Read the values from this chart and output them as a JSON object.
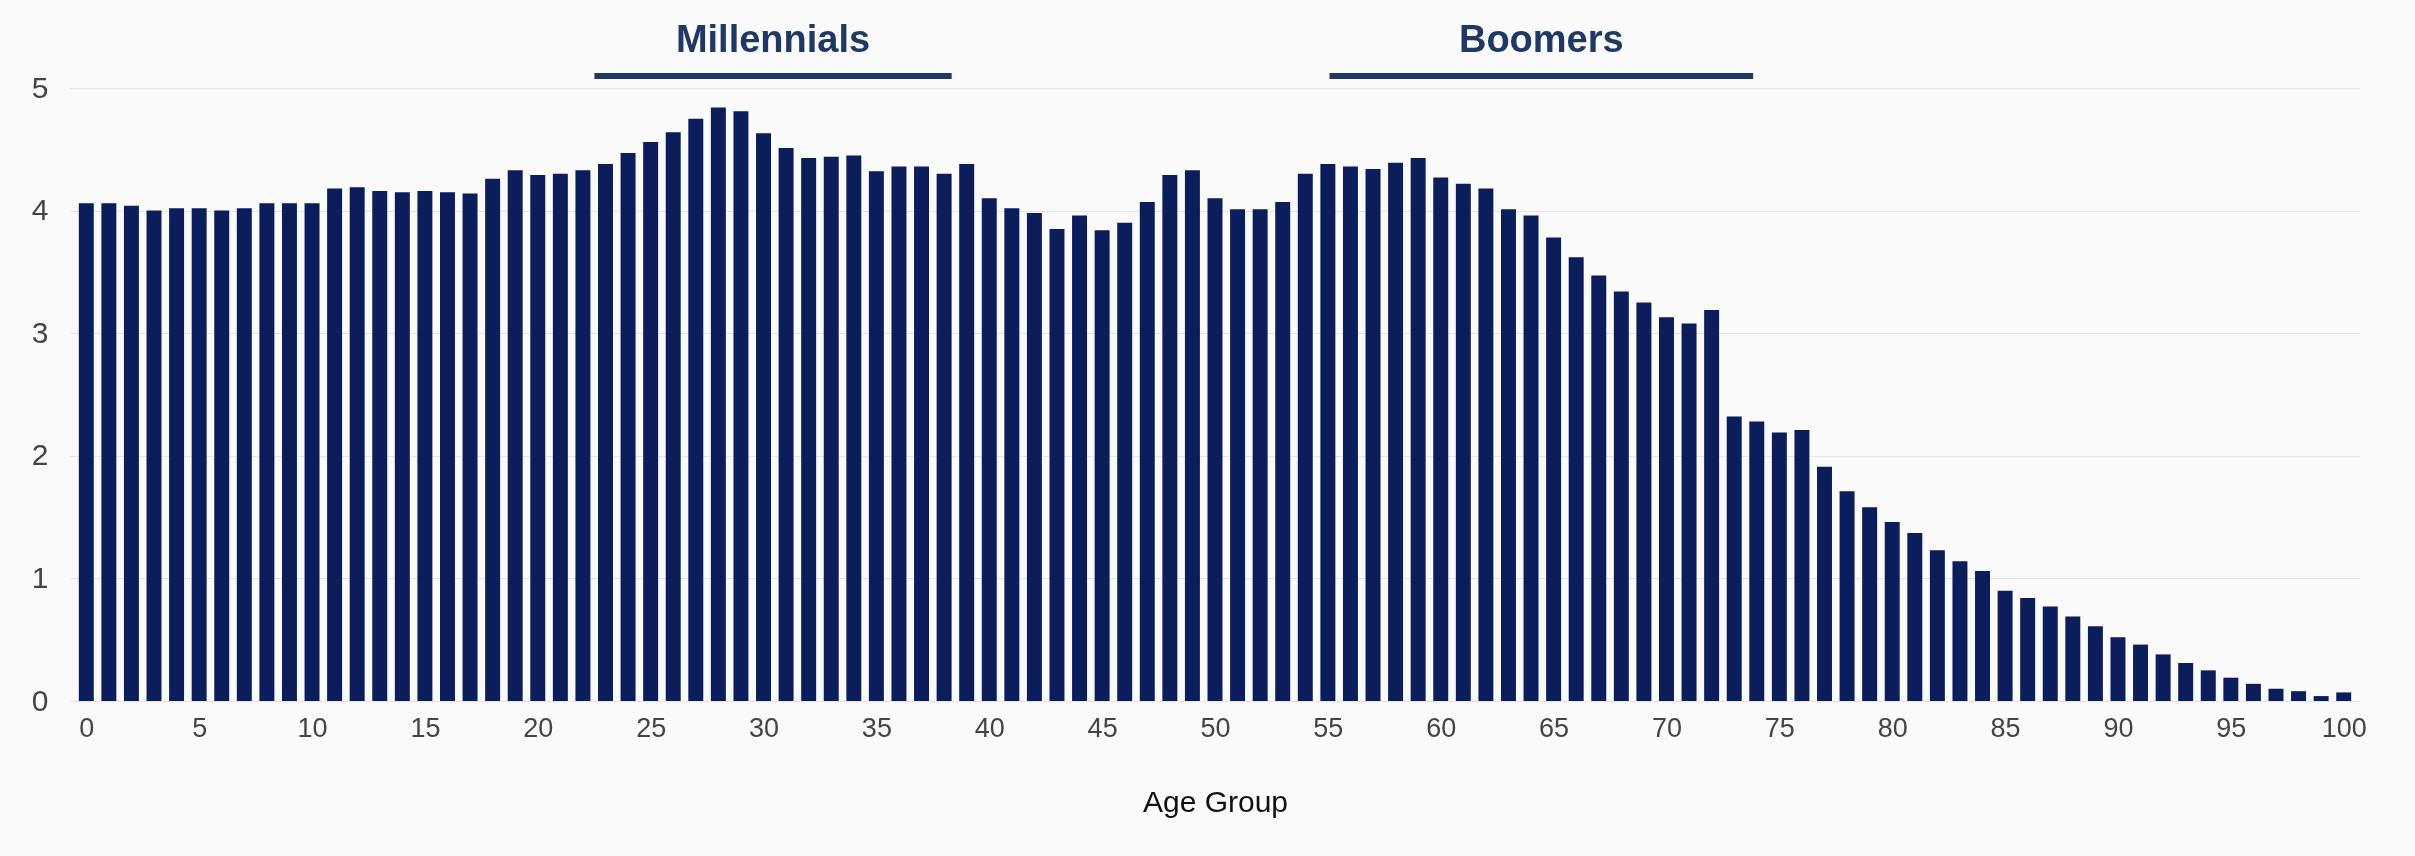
{
  "chart_data": {
    "type": "bar",
    "xlabel": "Age Group",
    "x": [
      0,
      1,
      2,
      3,
      4,
      5,
      6,
      7,
      8,
      9,
      10,
      11,
      12,
      13,
      14,
      15,
      16,
      17,
      18,
      19,
      20,
      21,
      22,
      23,
      24,
      25,
      26,
      27,
      28,
      29,
      30,
      31,
      32,
      33,
      34,
      35,
      36,
      37,
      38,
      39,
      40,
      41,
      42,
      43,
      44,
      45,
      46,
      47,
      48,
      49,
      50,
      51,
      52,
      53,
      54,
      55,
      56,
      57,
      58,
      59,
      60,
      61,
      62,
      63,
      64,
      65,
      66,
      67,
      68,
      69,
      70,
      71,
      72,
      73,
      74,
      75,
      76,
      77,
      78,
      79,
      80,
      81,
      82,
      83,
      84,
      85,
      86,
      87,
      88,
      89,
      90,
      91,
      92,
      93,
      94,
      95,
      96,
      97,
      98,
      99,
      100
    ],
    "values": [
      4.06,
      4.06,
      4.04,
      4.0,
      4.02,
      4.02,
      4.0,
      4.02,
      4.06,
      4.06,
      4.06,
      4.18,
      4.19,
      4.16,
      4.15,
      4.16,
      4.15,
      4.14,
      4.26,
      4.33,
      4.29,
      4.3,
      4.33,
      4.38,
      4.47,
      4.56,
      4.64,
      4.75,
      4.84,
      4.81,
      4.63,
      4.51,
      4.43,
      4.44,
      4.45,
      4.32,
      4.36,
      4.36,
      4.3,
      4.38,
      4.1,
      4.02,
      3.98,
      3.85,
      3.96,
      3.84,
      3.9,
      4.07,
      4.29,
      4.33,
      4.1,
      4.01,
      4.01,
      4.07,
      4.3,
      4.38,
      4.36,
      4.34,
      4.39,
      4.43,
      4.27,
      4.22,
      4.18,
      4.01,
      3.96,
      3.78,
      3.62,
      3.47,
      3.34,
      3.25,
      3.13,
      3.08,
      3.19,
      2.32,
      2.28,
      2.19,
      2.21,
      1.91,
      1.71,
      1.58,
      1.46,
      1.37,
      1.23,
      1.14,
      1.06,
      0.9,
      0.84,
      0.77,
      0.69,
      0.61,
      0.52,
      0.46,
      0.38,
      0.31,
      0.25,
      0.19,
      0.14,
      0.1,
      0.08,
      0.04,
      0.07
    ],
    "color": "#0b1d5a",
    "xlim": [
      -0.5,
      100.5
    ],
    "xticks": [
      0,
      5,
      10,
      15,
      20,
      25,
      30,
      35,
      40,
      45,
      50,
      55,
      60,
      65,
      70,
      75,
      80,
      85,
      90,
      95,
      100
    ],
    "ylim": [
      0,
      5
    ],
    "yticks": [
      0,
      1,
      2,
      3,
      4,
      5
    ],
    "grid": "y",
    "annotations": [
      "Millennials",
      "Boomers"
    ]
  }
}
